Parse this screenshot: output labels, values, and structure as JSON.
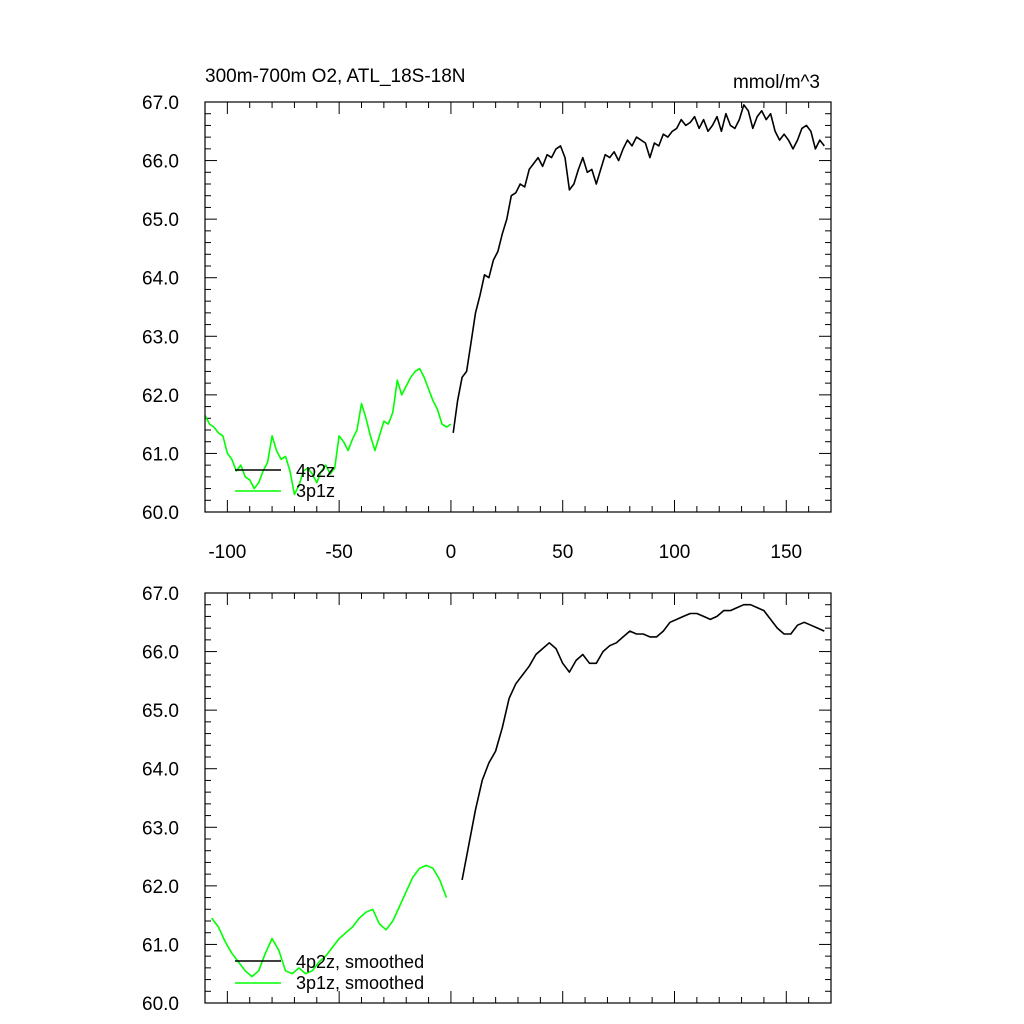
{
  "chart_data": [
    {
      "type": "line",
      "title": "300m-700m O2, ATL_18S-18N",
      "units": "mmol/m^3",
      "xlim": [
        -110,
        170
      ],
      "ylim": [
        60,
        67
      ],
      "x_ticks": [
        -100,
        -50,
        0,
        50,
        100,
        150
      ],
      "x_tick_labels": [
        "-100",
        "-50",
        "0",
        "50",
        "100",
        "150"
      ],
      "y_ticks": [
        60,
        61,
        62,
        63,
        64,
        65,
        66,
        67
      ],
      "y_tick_labels": [
        "60.0",
        "61.0",
        "62.0",
        "63.0",
        "64.0",
        "65.0",
        "66.0",
        "67.0"
      ],
      "legend_position": "bottom-left",
      "series": [
        {
          "name": "4p2z",
          "color": "#000000",
          "x": [
            1,
            3,
            5,
            7,
            9,
            11,
            13,
            15,
            17,
            19,
            21,
            23,
            25,
            27,
            29,
            31,
            33,
            35,
            37,
            39,
            41,
            43,
            45,
            47,
            49,
            51,
            53,
            55,
            57,
            59,
            61,
            63,
            65,
            67,
            69,
            71,
            73,
            75,
            77,
            79,
            81,
            83,
            85,
            87,
            89,
            91,
            93,
            95,
            97,
            99,
            101,
            103,
            105,
            107,
            109,
            111,
            113,
            115,
            117,
            119,
            121,
            123,
            125,
            127,
            129,
            131,
            133,
            135,
            137,
            139,
            141,
            143,
            145,
            147,
            149,
            151,
            153,
            155,
            157,
            159,
            161,
            163,
            165,
            167
          ],
          "y": [
            61.35,
            61.9,
            62.3,
            62.4,
            62.9,
            63.4,
            63.7,
            64.05,
            64.0,
            64.3,
            64.45,
            64.75,
            65.0,
            65.4,
            65.45,
            65.6,
            65.55,
            65.85,
            65.95,
            66.05,
            65.9,
            66.1,
            66.05,
            66.2,
            66.25,
            66.05,
            65.5,
            65.6,
            65.85,
            66.05,
            65.8,
            65.85,
            65.6,
            65.85,
            66.1,
            66.05,
            66.15,
            66.0,
            66.2,
            66.35,
            66.25,
            66.4,
            66.35,
            66.3,
            66.05,
            66.3,
            66.25,
            66.45,
            66.4,
            66.5,
            66.55,
            66.7,
            66.6,
            66.65,
            66.75,
            66.55,
            66.7,
            66.5,
            66.6,
            66.75,
            66.5,
            66.8,
            66.6,
            66.55,
            66.7,
            66.95,
            66.85,
            66.55,
            66.75,
            66.85,
            66.7,
            66.8,
            66.5,
            66.35,
            66.45,
            66.35,
            66.2,
            66.35,
            66.55,
            66.6,
            66.5,
            66.2,
            66.35,
            66.25
          ]
        },
        {
          "name": "3p1z",
          "color": "#00ff00",
          "x": [
            -110,
            -108,
            -106,
            -104,
            -102,
            -100,
            -98,
            -96,
            -94,
            -92,
            -90,
            -88,
            -86,
            -84,
            -82,
            -80,
            -78,
            -76,
            -74,
            -72,
            -70,
            -68,
            -66,
            -64,
            -62,
            -60,
            -58,
            -56,
            -54,
            -52,
            -50,
            -48,
            -46,
            -44,
            -42,
            -40,
            -38,
            -36,
            -34,
            -32,
            -30,
            -28,
            -26,
            -24,
            -22,
            -20,
            -18,
            -16,
            -14,
            -12,
            -10,
            -8,
            -6,
            -4,
            -2,
            0
          ],
          "y": [
            61.65,
            61.5,
            61.45,
            61.35,
            61.3,
            61.0,
            60.9,
            60.7,
            60.8,
            60.6,
            60.55,
            60.4,
            60.5,
            60.7,
            60.85,
            61.3,
            61.05,
            60.9,
            60.95,
            60.7,
            60.3,
            60.45,
            60.7,
            60.75,
            60.65,
            60.5,
            60.7,
            60.8,
            60.65,
            60.75,
            61.3,
            61.2,
            61.05,
            61.25,
            61.4,
            61.85,
            61.6,
            61.3,
            61.05,
            61.3,
            61.55,
            61.5,
            61.7,
            62.25,
            62.0,
            62.15,
            62.3,
            62.4,
            62.45,
            62.3,
            62.1,
            61.9,
            61.75,
            61.5,
            61.45,
            61.5
          ]
        }
      ]
    },
    {
      "type": "line",
      "xlim": [
        -110,
        170
      ],
      "ylim": [
        60,
        67
      ],
      "y_ticks": [
        60,
        61,
        62,
        63,
        64,
        65,
        66,
        67
      ],
      "y_tick_labels": [
        "60.0",
        "61.0",
        "62.0",
        "63.0",
        "64.0",
        "65.0",
        "66.0",
        "67.0"
      ],
      "x_ticks": [
        -100,
        -50,
        0,
        50,
        100,
        150
      ],
      "legend_position": "bottom-left",
      "series": [
        {
          "name": "4p2z, smoothed",
          "color": "#000000",
          "x": [
            5,
            8,
            11,
            14,
            17,
            20,
            23,
            26,
            29,
            32,
            35,
            38,
            41,
            44,
            47,
            50,
            53,
            56,
            59,
            62,
            65,
            68,
            71,
            74,
            77,
            80,
            83,
            86,
            89,
            92,
            95,
            98,
            101,
            104,
            107,
            110,
            113,
            116,
            119,
            122,
            125,
            128,
            131,
            134,
            137,
            140,
            143,
            146,
            149,
            152,
            155,
            158,
            161,
            164,
            167
          ],
          "y": [
            62.1,
            62.7,
            63.3,
            63.8,
            64.1,
            64.3,
            64.7,
            65.2,
            65.45,
            65.6,
            65.75,
            65.95,
            66.05,
            66.15,
            66.05,
            65.8,
            65.65,
            65.85,
            65.95,
            65.8,
            65.8,
            66.0,
            66.1,
            66.15,
            66.25,
            66.35,
            66.3,
            66.3,
            66.25,
            66.25,
            66.35,
            66.5,
            66.55,
            66.6,
            66.65,
            66.65,
            66.6,
            66.55,
            66.6,
            66.7,
            66.7,
            66.75,
            66.8,
            66.8,
            66.75,
            66.7,
            66.55,
            66.4,
            66.3,
            66.3,
            66.45,
            66.5,
            66.45,
            66.4,
            66.35
          ]
        },
        {
          "name": "3p1z, smoothed",
          "color": "#00ff00",
          "x": [
            -107,
            -104,
            -101,
            -98,
            -95,
            -92,
            -89,
            -86,
            -83,
            -80,
            -77,
            -74,
            -71,
            -68,
            -65,
            -62,
            -59,
            -56,
            -53,
            -50,
            -47,
            -44,
            -41,
            -38,
            -35,
            -32,
            -29,
            -26,
            -23,
            -20,
            -17,
            -14,
            -11,
            -8,
            -5,
            -2
          ],
          "y": [
            61.45,
            61.3,
            61.05,
            60.85,
            60.7,
            60.55,
            60.45,
            60.55,
            60.85,
            61.1,
            60.9,
            60.55,
            60.5,
            60.6,
            60.5,
            60.55,
            60.7,
            60.8,
            60.95,
            61.1,
            61.2,
            61.3,
            61.45,
            61.55,
            61.6,
            61.35,
            61.25,
            61.4,
            61.65,
            61.9,
            62.15,
            62.3,
            62.35,
            62.3,
            62.1,
            61.8
          ]
        }
      ]
    }
  ]
}
